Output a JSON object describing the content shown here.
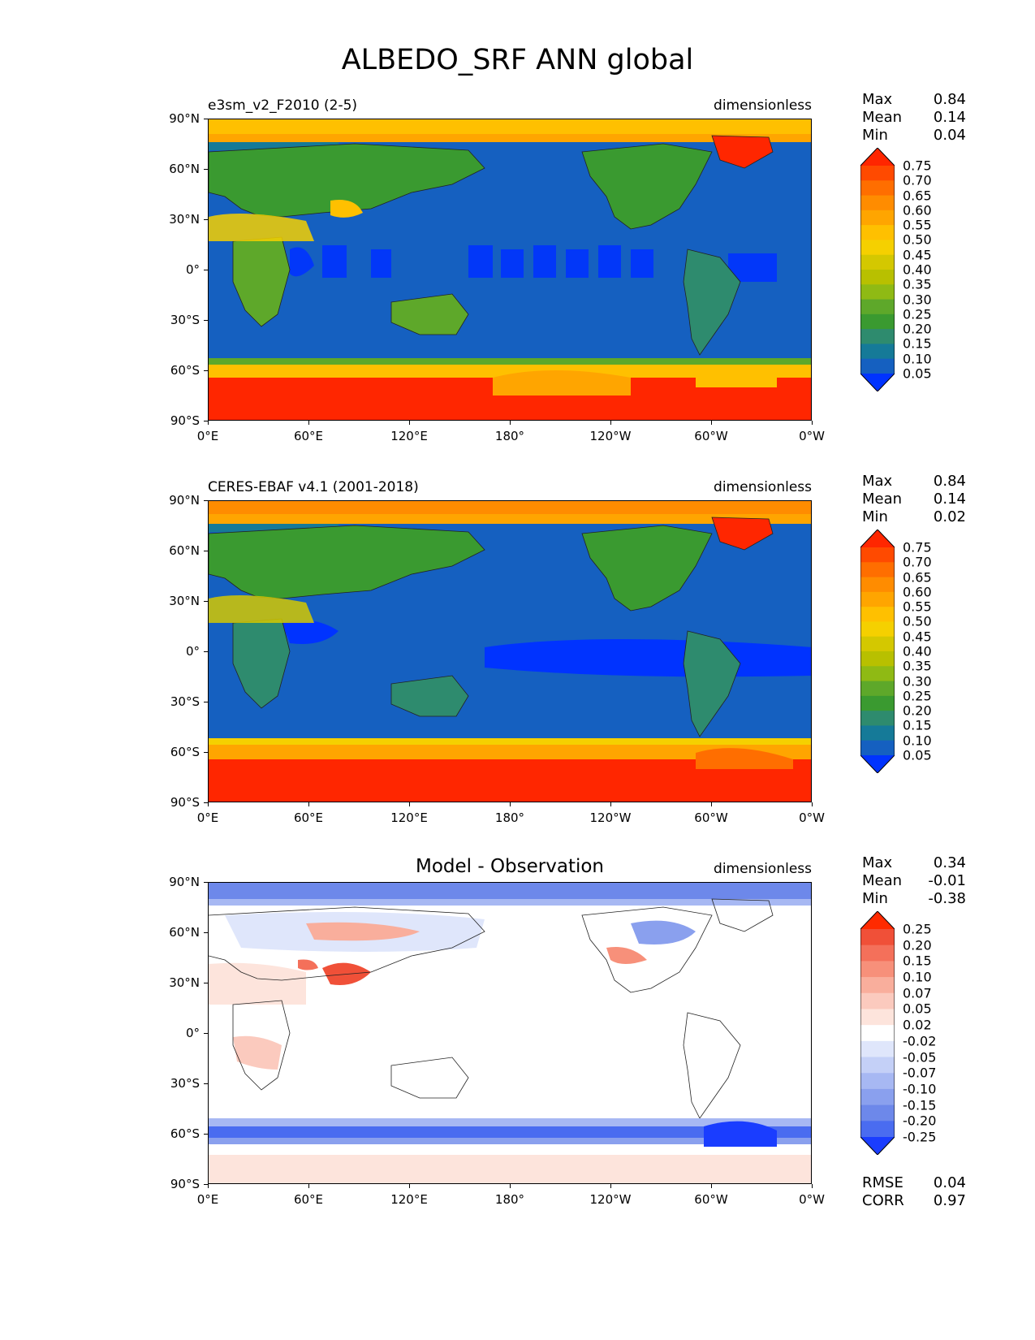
{
  "title": "ALBEDO_SRF ANN global",
  "x_ticks": [
    "0°E",
    "60°E",
    "120°E",
    "180°",
    "120°W",
    "60°W",
    "0°W"
  ],
  "y_ticks": [
    "90°N",
    "60°N",
    "30°N",
    "0°",
    "30°S",
    "60°S",
    "90°S"
  ],
  "panels": [
    {
      "title_left": "e3sm_v2_F2010 (2-5)",
      "title_center": "",
      "units": "dimensionless",
      "stats": {
        "max_label": "Max",
        "max": "0.84",
        "mean_label": "Mean",
        "mean": "0.14",
        "min_label": "Min",
        "min": "0.04"
      }
    },
    {
      "title_left": "CERES-EBAF v4.1 (2001-2018)",
      "title_center": "",
      "units": "dimensionless",
      "stats": {
        "max_label": "Max",
        "max": "0.84",
        "mean_label": "Mean",
        "mean": "0.14",
        "min_label": "Min",
        "min": "0.02"
      }
    },
    {
      "title_left": "",
      "title_center": "Model - Observation",
      "units": "dimensionless",
      "stats": {
        "max_label": "Max",
        "max": "0.34",
        "mean_label": "Mean",
        "mean": "-0.01",
        "min_label": "Min",
        "min": "-0.38"
      },
      "rmse_label": "RMSE",
      "rmse": "0.04",
      "corr_label": "CORR",
      "corr": "0.97"
    }
  ],
  "colorbar_abs": {
    "levels": [
      "0.75",
      "0.70",
      "0.65",
      "0.60",
      "0.55",
      "0.50",
      "0.45",
      "0.40",
      "0.35",
      "0.30",
      "0.25",
      "0.20",
      "0.15",
      "0.10",
      "0.05"
    ],
    "colors": [
      "#ff2600",
      "#ff4a00",
      "#ff6e00",
      "#ff8c00",
      "#ffa500",
      "#ffc000",
      "#f5d000",
      "#d4c800",
      "#b8c000",
      "#8fba14",
      "#5ea82a",
      "#3a9a30",
      "#2e8b6e",
      "#157a98",
      "#1560c0",
      "#0033ff"
    ]
  },
  "colorbar_diff": {
    "levels": [
      "0.25",
      "0.20",
      "0.15",
      "0.10",
      "0.07",
      "0.05",
      "0.02",
      "-0.02",
      "-0.05",
      "-0.07",
      "-0.10",
      "-0.15",
      "-0.20",
      "-0.25"
    ],
    "colors": [
      "#ff2a00",
      "#f05038",
      "#f4705a",
      "#f7907a",
      "#f9ae9c",
      "#fbcabe",
      "#fde4dc",
      "#ffffff",
      "#dfe6fb",
      "#c4d0f7",
      "#a7b8f3",
      "#8aa0ee",
      "#6d88ea",
      "#4a6cf0",
      "#1a3dff"
    ]
  }
}
